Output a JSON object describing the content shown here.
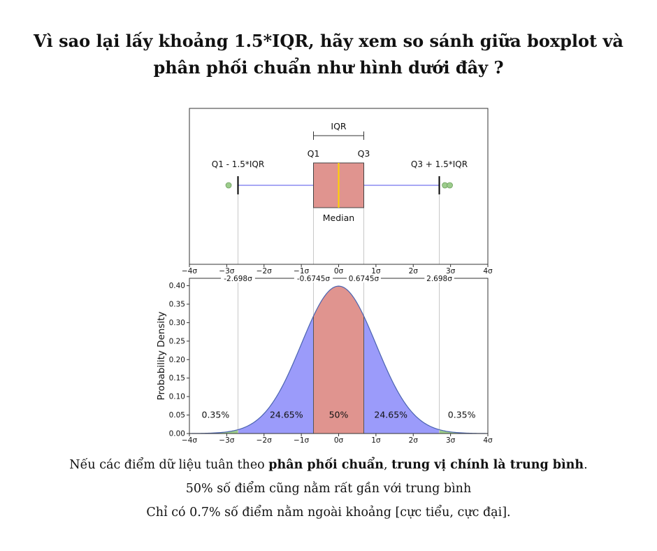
{
  "header": {
    "title_line1": "Vì sao lại lấy khoảng 1.5*IQR, hãy xem so sánh giữa boxplot và",
    "title_line2": "phân phối chuẩn như hình dưới đây ?"
  },
  "chart_data": [
    {
      "type": "boxplot",
      "xlim": [
        -4,
        4
      ],
      "x_ticks": [
        "−4σ",
        "−3σ",
        "−2σ",
        "−1σ",
        "0σ",
        "1σ",
        "2σ",
        "3σ",
        "4σ"
      ],
      "q1": -0.6745,
      "median": 0,
      "q3": 0.6745,
      "whisker_low": -2.698,
      "whisker_high": 2.698,
      "outliers": [
        -2.95,
        2.85,
        2.98
      ],
      "labels": {
        "iqr": "IQR",
        "q1": "Q1",
        "q3": "Q3",
        "lower_fence": "Q1 - 1.5*IQR",
        "upper_fence": "Q3 + 1.5*IQR",
        "median": "Median"
      },
      "colors": {
        "box": "#e0948f",
        "median": "#ffd400",
        "whisker": "#8c8cf0",
        "outlier": "#9ccc8c"
      }
    },
    {
      "type": "area",
      "xlim": [
        -4,
        4
      ],
      "ylim": [
        0,
        0.42
      ],
      "ylabel": "Probability Density",
      "x_ticks": [
        "−4σ",
        "−3σ",
        "−2σ",
        "−1σ",
        "0σ",
        "1σ",
        "2σ",
        "3σ",
        "4σ"
      ],
      "y_ticks": [
        "0.00",
        "0.05",
        "0.10",
        "0.15",
        "0.20",
        "0.25",
        "0.30",
        "0.35",
        "0.40"
      ],
      "y_tick_values": [
        0,
        0.05,
        0.1,
        0.15,
        0.2,
        0.25,
        0.3,
        0.35,
        0.4
      ],
      "boundary_labels": [
        "-2.698σ",
        "-0.6745σ",
        "0.6745σ",
        "2.698σ"
      ],
      "boundaries": [
        -2.698,
        -0.6745,
        0.6745,
        2.698
      ],
      "regions": [
        {
          "label": "0.35%",
          "from": -4,
          "to": -2.698,
          "label_x": -3.3,
          "color": "#9ccc8c"
        },
        {
          "label": "24.65%",
          "from": -2.698,
          "to": -0.6745,
          "label_x": -1.4,
          "color": "#9b9bfa"
        },
        {
          "label": "50%",
          "from": -0.6745,
          "to": 0.6745,
          "label_x": 0,
          "color": "#e0948f"
        },
        {
          "label": "24.65%",
          "from": 0.6745,
          "to": 2.698,
          "label_x": 1.4,
          "color": "#9b9bfa"
        },
        {
          "label": "0.35%",
          "from": 2.698,
          "to": 4,
          "label_x": 3.3,
          "color": "#9ccc8c"
        }
      ]
    }
  ],
  "caption": {
    "line1_a": "Nếu các điểm dữ liệu tuân theo ",
    "line1_b": "phân phối chuẩn",
    "line1_c": ", ",
    "line1_d": "trung vị chính là trung bình",
    "line1_e": ".",
    "line2": "50% số điểm cũng nằm rất gần với trung bình",
    "line3": "Chỉ có 0.7% số điểm nằm ngoài khoảng [cực tiểu, cực đại]."
  }
}
